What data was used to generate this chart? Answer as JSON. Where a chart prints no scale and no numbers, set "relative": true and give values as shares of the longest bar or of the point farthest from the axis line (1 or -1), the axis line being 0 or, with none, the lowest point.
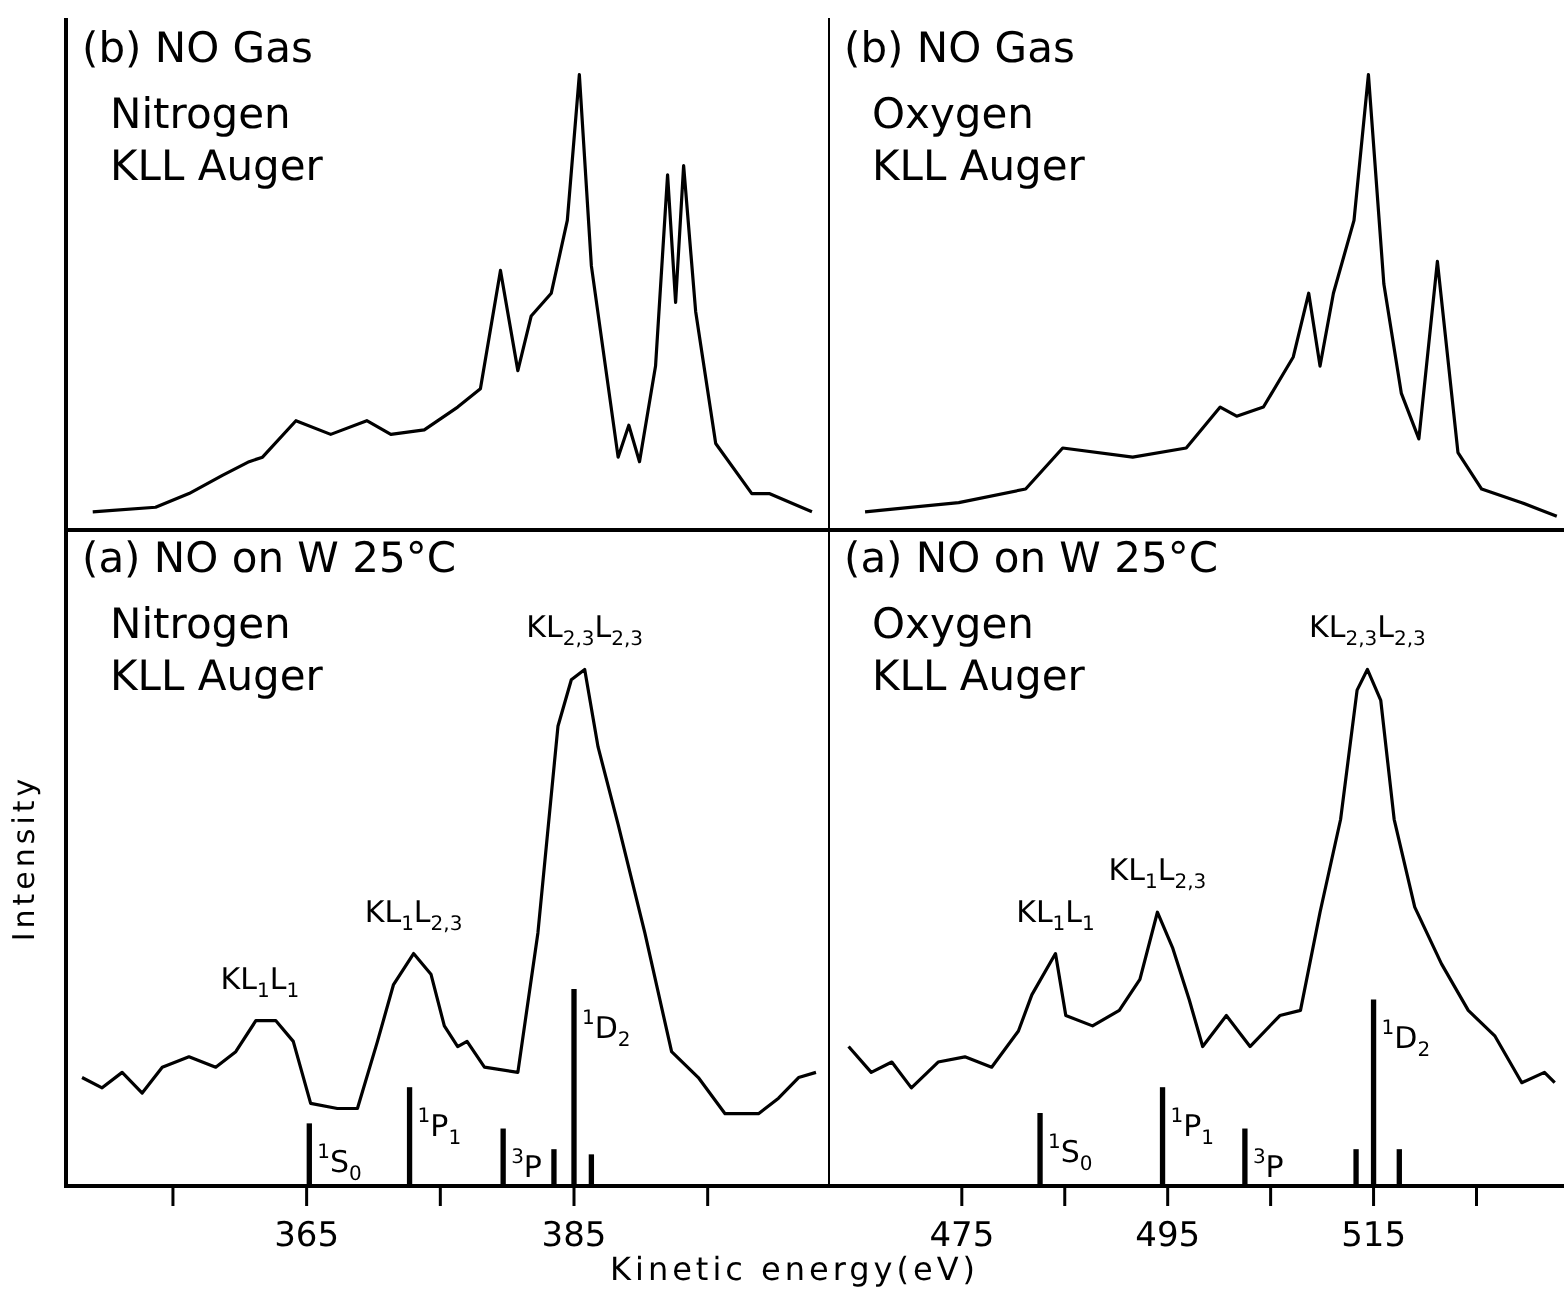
{
  "chart_data": [
    {
      "type": "line",
      "title": "(b) NO Gas",
      "subtitle": "Nitrogen KLL Auger",
      "relative": true,
      "xlim": [
        347,
        404
      ],
      "tick_labels": false,
      "legend": false,
      "series": [
        {
          "color": "#000000",
          "x": [
            349.0,
            353.7,
            356.2,
            358.7,
            360.7,
            361.7,
            364.2,
            366.8,
            369.5,
            371.3,
            373.8,
            376.3,
            378.0,
            379.5,
            380.8,
            381.8,
            383.3,
            384.5,
            385.4,
            386.3,
            388.3,
            389.1,
            389.9,
            391.1,
            392.0,
            392.6,
            393.2,
            394.1,
            395.6,
            398.3,
            399.6,
            402.8
          ],
          "values": [
            0.04,
            0.05,
            0.08,
            0.12,
            0.15,
            0.16,
            0.24,
            0.21,
            0.24,
            0.21,
            0.22,
            0.27,
            0.31,
            0.57,
            0.35,
            0.47,
            0.52,
            0.68,
            1.0,
            0.58,
            0.16,
            0.23,
            0.15,
            0.36,
            0.78,
            0.5,
            0.8,
            0.48,
            0.19,
            0.08,
            0.08,
            0.04
          ]
        }
      ]
    },
    {
      "type": "line",
      "title": "(b) NO Gas",
      "subtitle": "Oxygen KLL Auger",
      "relative": true,
      "xlim": [
        462,
        533.5
      ],
      "tick_labels": false,
      "legend": false,
      "series": [
        {
          "color": "#000000",
          "x": [
            465.6,
            474.7,
            481.2,
            484.8,
            491.6,
            496.8,
            500.1,
            501.7,
            504.3,
            507.2,
            508.7,
            509.8,
            511.1,
            513.1,
            514.5,
            516.0,
            517.7,
            519.4,
            521.2,
            523.2,
            525.5,
            529.4,
            532.8
          ],
          "values": [
            0.04,
            0.06,
            0.09,
            0.18,
            0.16,
            0.18,
            0.27,
            0.25,
            0.27,
            0.38,
            0.52,
            0.36,
            0.52,
            0.68,
            1.0,
            0.54,
            0.3,
            0.2,
            0.59,
            0.17,
            0.09,
            0.06,
            0.03
          ]
        }
      ]
    },
    {
      "type": "line",
      "title": "(a) NO on W 25°C",
      "subtitle": "Nitrogen KLL Auger",
      "xlabel": "Kinetic energy(eV)",
      "ylabel": "Intensity",
      "relative": true,
      "xlim": [
        347,
        404
      ],
      "legend": false,
      "xticks": [
        {
          "value": 355,
          "label": null
        },
        365,
        {
          "value": 375,
          "label": null
        },
        385,
        {
          "value": 395,
          "label": null
        }
      ],
      "series": [
        {
          "color": "#000000",
          "x": [
            348.2,
            349.7,
            351.2,
            352.7,
            354.2,
            356.2,
            358.2,
            359.7,
            361.2,
            362.7,
            364.0,
            365.3,
            367.3,
            368.8,
            370.3,
            371.5,
            373.0,
            374.3,
            375.3,
            376.3,
            377.0,
            378.3,
            380.8,
            382.3,
            383.8,
            384.8,
            385.8,
            386.8,
            388.3,
            390.3,
            392.3,
            394.3,
            396.3,
            398.8,
            400.3,
            401.8,
            403.1
          ],
          "values": [
            0.21,
            0.19,
            0.22,
            0.18,
            0.23,
            0.25,
            0.23,
            0.26,
            0.32,
            0.32,
            0.28,
            0.16,
            0.15,
            0.15,
            0.28,
            0.39,
            0.45,
            0.41,
            0.31,
            0.27,
            0.28,
            0.23,
            0.22,
            0.49,
            0.89,
            0.98,
            1.0,
            0.85,
            0.7,
            0.49,
            0.26,
            0.21,
            0.14,
            0.14,
            0.17,
            0.21,
            0.22
          ]
        },
        {
          "type": "bar",
          "color": "#000000",
          "x": [
            365.2,
            372.7,
            379.7,
            383.5,
            385.0,
            386.3
          ],
          "values": [
            0.12,
            0.19,
            0.11,
            0.07,
            0.38,
            0.06
          ]
        }
      ],
      "annotations": [
        {
          "text": "KL$_{1}$L$_{1}$",
          "x": 361.5,
          "y": 0.32
        },
        {
          "text": "KL$_{1}$L$_{2,3}$",
          "x": 373.0,
          "y": 0.45
        },
        {
          "text": "KL$_{2,3}$L$_{2,3}$",
          "x": 385.8,
          "y": 1.0
        },
        {
          "text": "$^{1}$S$_{0}$",
          "x": 365.2,
          "y": 0.12
        },
        {
          "text": "$^{1}$P$_{1}$",
          "x": 372.7,
          "y": 0.19
        },
        {
          "text": "$^{3}$P",
          "x": 379.7,
          "y": 0.11
        },
        {
          "text": "$^{1}$D$_{2}$",
          "x": 385.0,
          "y": 0.38
        }
      ]
    },
    {
      "type": "line",
      "title": "(a) NO on W 25°C",
      "subtitle": "Oxygen KLL Auger",
      "relative": true,
      "xlim": [
        462,
        533.5
      ],
      "legend": false,
      "xticks": [
        475,
        {
          "value": 485,
          "label": null
        },
        495,
        {
          "value": 505,
          "label": null
        },
        515,
        {
          "value": 525,
          "label": null
        }
      ],
      "series": [
        {
          "color": "#000000",
          "x": [
            464.0,
            466.2,
            468.2,
            470.1,
            472.7,
            475.3,
            477.9,
            480.5,
            481.8,
            484.1,
            485.1,
            487.7,
            490.3,
            492.3,
            494.0,
            495.5,
            497.1,
            498.4,
            500.7,
            503.0,
            505.9,
            507.9,
            509.8,
            511.8,
            513.4,
            514.4,
            515.7,
            517.0,
            519.0,
            521.6,
            524.2,
            526.8,
            529.4,
            531.6,
            532.6
          ],
          "values": [
            0.27,
            0.22,
            0.24,
            0.19,
            0.24,
            0.25,
            0.23,
            0.3,
            0.37,
            0.45,
            0.33,
            0.31,
            0.34,
            0.4,
            0.53,
            0.46,
            0.36,
            0.27,
            0.33,
            0.27,
            0.33,
            0.34,
            0.53,
            0.71,
            0.96,
            1.0,
            0.94,
            0.71,
            0.54,
            0.43,
            0.34,
            0.29,
            0.2,
            0.22,
            0.2
          ]
        },
        {
          "type": "bar",
          "color": "#000000",
          "x": [
            482.6,
            494.5,
            502.5,
            513.3,
            515.0,
            517.5
          ],
          "values": [
            0.14,
            0.19,
            0.11,
            0.07,
            0.36,
            0.07
          ]
        }
      ],
      "annotations": [
        {
          "text": "KL$_{1}$L$_{1}$",
          "x": 484.1,
          "y": 0.45
        },
        {
          "text": "KL$_{1}$L$_{2,3}$",
          "x": 494.0,
          "y": 0.53
        },
        {
          "text": "KL$_{2,3}$L$_{2,3}$",
          "x": 514.4,
          "y": 1.0
        },
        {
          "text": "$^{1}$S$_{0}$",
          "x": 482.6,
          "y": 0.14
        },
        {
          "text": "$^{1}$P$_{1}$",
          "x": 494.5,
          "y": 0.19
        },
        {
          "text": "$^{3}$P",
          "x": 502.5,
          "y": 0.11
        },
        {
          "text": "$^{1}$D$_{2}$",
          "x": 515.0,
          "y": 0.36
        }
      ]
    }
  ]
}
